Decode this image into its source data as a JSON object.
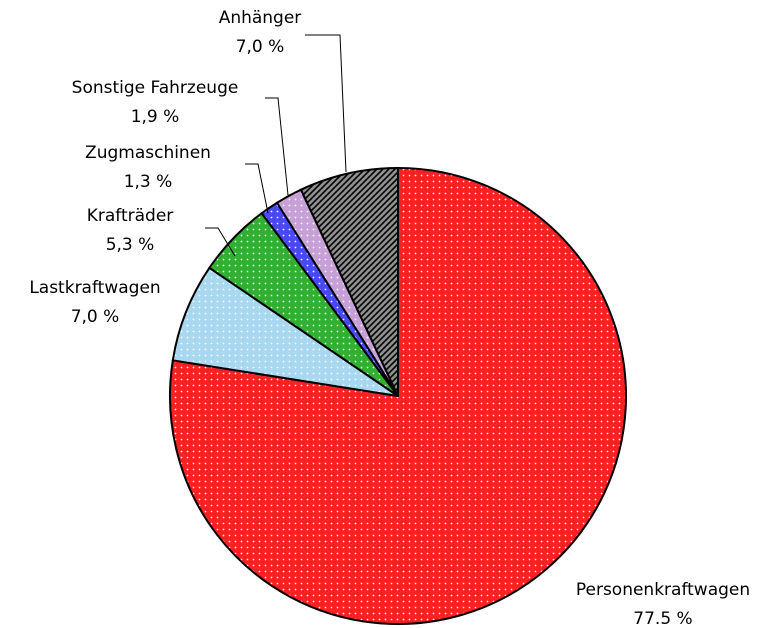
{
  "chart_data": {
    "type": "pie",
    "categories": [
      "Personenkraftwagen",
      "Lastkraftwagen",
      "Krafträder",
      "Zugmaschinen",
      "Sonstige Fahrzeuge",
      "Anhänger"
    ],
    "values": [
      77.5,
      7.0,
      5.3,
      1.3,
      1.9,
      7.0
    ],
    "value_labels": [
      "77.5 %",
      "7,0 %",
      "5,3 %",
      "1,3 %",
      "1,9 %",
      "7,0 %"
    ],
    "colors": [
      "#ff2020",
      "#a8d8f0",
      "#30b030",
      "#4848ff",
      "#c8a0d8",
      "#909090"
    ]
  }
}
